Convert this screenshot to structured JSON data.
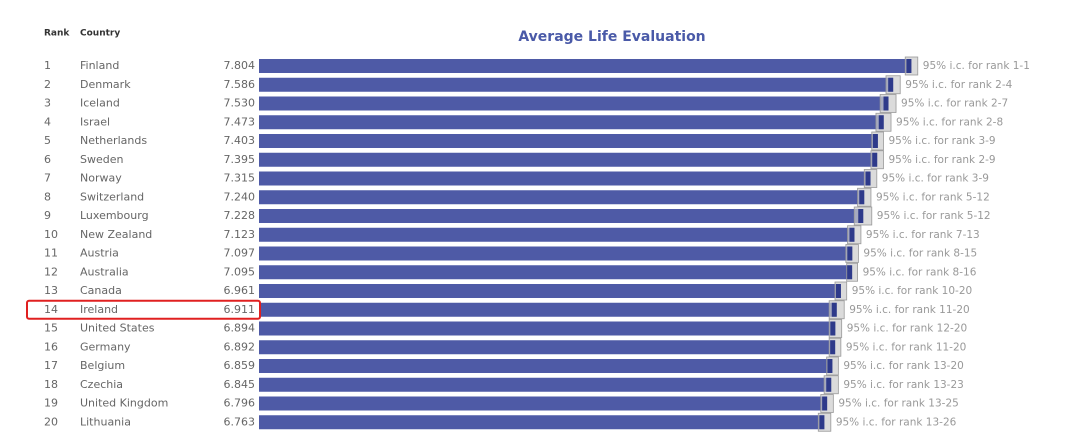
{
  "chart_data": {
    "type": "bar",
    "title": "Average Life Evaluation",
    "rank_header": "Rank",
    "country_header": "Country",
    "ranks": [
      1,
      2,
      3,
      4,
      5,
      6,
      7,
      8,
      9,
      10,
      11,
      12,
      13,
      14,
      15,
      16,
      17,
      18,
      19,
      20
    ],
    "categories": [
      "Finland",
      "Denmark",
      "Iceland",
      "Israel",
      "Netherlands",
      "Sweden",
      "Norway",
      "Switzerland",
      "Luxembourg",
      "New Zealand",
      "Austria",
      "Australia",
      "Canada",
      "Ireland",
      "United States",
      "Germany",
      "Belgium",
      "Czechia",
      "United Kingdom",
      "Lithuania"
    ],
    "values": [
      7.804,
      7.586,
      7.53,
      7.473,
      7.403,
      7.395,
      7.315,
      7.24,
      7.228,
      7.123,
      7.097,
      7.095,
      6.961,
      6.911,
      6.894,
      6.892,
      6.859,
      6.845,
      6.796,
      6.763
    ],
    "value_labels": [
      "7.804",
      "7.586",
      "7.530",
      "7.473",
      "7.403",
      "7.395",
      "7.315",
      "7.240",
      "7.228",
      "7.123",
      "7.097",
      "7.095",
      "6.961",
      "6.911",
      "6.894",
      "6.892",
      "6.859",
      "6.845",
      "6.796",
      "6.763"
    ],
    "ci_low": [
      7.73,
      7.5,
      7.43,
      7.38,
      7.33,
      7.32,
      7.24,
      7.16,
      7.12,
      7.04,
      7.02,
      7.03,
      6.89,
      6.82,
      6.82,
      6.82,
      6.79,
      6.76,
      6.72,
      6.69
    ],
    "ci_high": [
      7.88,
      7.67,
      7.62,
      7.56,
      7.47,
      7.47,
      7.39,
      7.32,
      7.33,
      7.2,
      7.17,
      7.16,
      7.03,
      7.0,
      6.97,
      6.96,
      6.93,
      6.93,
      6.87,
      6.84
    ],
    "ci_labels": [
      "95% i.c. for rank 1-1",
      "95% i.c. for rank 2-4",
      "95% i.c. for rank 2-7",
      "95% i.c. for rank 2-8",
      "95% i.c. for rank 3-9",
      "95% i.c. for rank 2-9",
      "95% i.c. for rank 3-9",
      "95% i.c. for rank 5-12",
      "95% i.c. for rank 5-12",
      "95% i.c. for rank 7-13",
      "95% i.c. for rank 8-15",
      "95% i.c. for rank 8-16",
      "95% i.c. for rank 10-20",
      "95% i.c. for rank 11-20",
      "95% i.c. for rank 12-20",
      "95% i.c. for rank 11-20",
      "95% i.c. for rank 13-20",
      "95% i.c. for rank 13-23",
      "95% i.c. for rank 13-25",
      "95% i.c. for rank 13-26"
    ],
    "xlim": [
      0,
      9
    ],
    "color": "#4e5aa6",
    "ci_color": "#cccccc",
    "highlight_row": 13,
    "highlight_color": "#e02020"
  }
}
